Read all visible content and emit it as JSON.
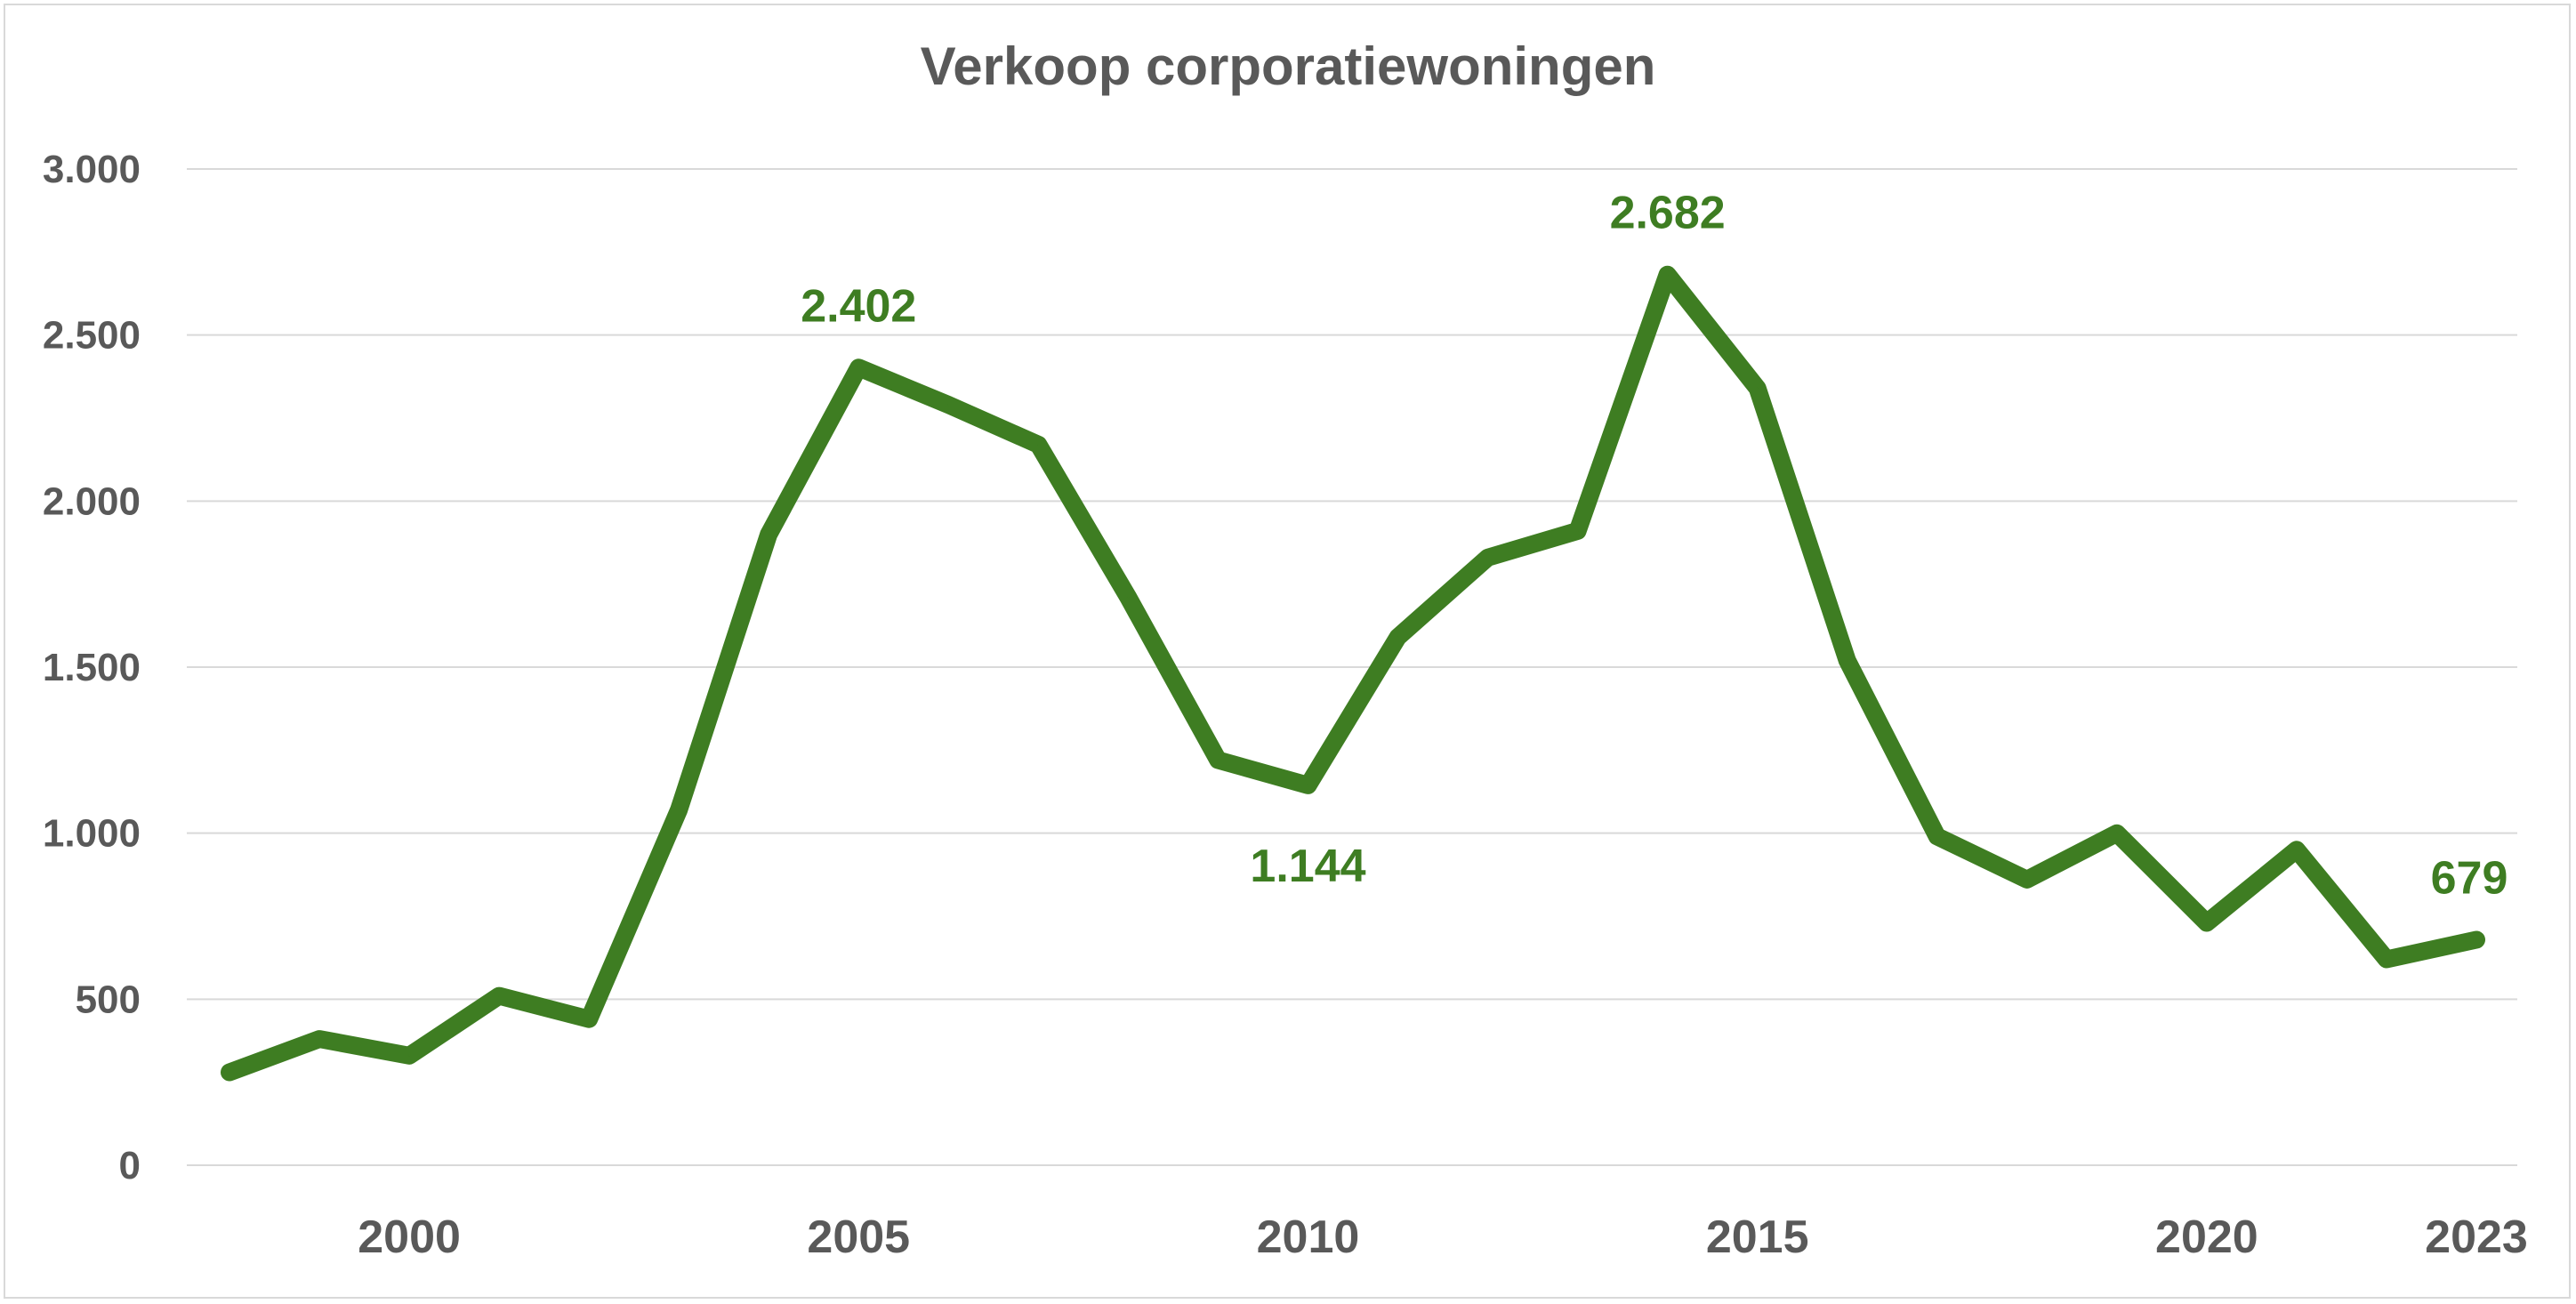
{
  "chart_data": {
    "type": "line",
    "title": "Verkoop corporatiewoningen",
    "xlabel": "",
    "ylabel": "",
    "ylim": [
      0,
      3000
    ],
    "xlim": [
      1998,
      2023
    ],
    "y_ticks": [
      0,
      500,
      1000,
      1500,
      2000,
      2500,
      3000
    ],
    "y_tick_labels": [
      "0",
      "500",
      "1.000",
      "1.500",
      "2.000",
      "2.500",
      "3.000"
    ],
    "x_tick_labels": [
      "2000",
      "2005",
      "2010",
      "2015",
      "2020",
      "2023"
    ],
    "x_tick_values": [
      2000,
      2005,
      2010,
      2015,
      2020,
      2023
    ],
    "grid": true,
    "legend": "none",
    "series": [
      {
        "color": "#3e7d22",
        "x": [
          1998,
          1999,
          2000,
          2001,
          2002,
          2003,
          2004,
          2005,
          2006,
          2007,
          2008,
          2009,
          2010,
          2011,
          2012,
          2013,
          2014,
          2015,
          2016,
          2017,
          2018,
          2019,
          2020,
          2021,
          2022,
          2023
        ],
        "values": [
          280,
          380,
          330,
          510,
          440,
          1070,
          1900,
          2402,
          2290,
          2170,
          1710,
          1220,
          1144,
          1590,
          1830,
          1910,
          2682,
          2340,
          1520,
          990,
          860,
          1000,
          730,
          950,
          620,
          679
        ]
      }
    ],
    "data_labels": [
      {
        "x": 2005,
        "value": 2402,
        "text": "2.402",
        "position": "above"
      },
      {
        "x": 2010,
        "value": 1144,
        "text": "1.144",
        "position": "below"
      },
      {
        "x": 2014,
        "value": 2682,
        "text": "2.682",
        "position": "above"
      },
      {
        "x": 2023,
        "value": 679,
        "text": "679",
        "position": "above"
      }
    ],
    "colors": {
      "line": "#3e7d22",
      "label": "#3e7d22",
      "axis_text": "#595959",
      "grid": "#d9d9d9"
    }
  }
}
